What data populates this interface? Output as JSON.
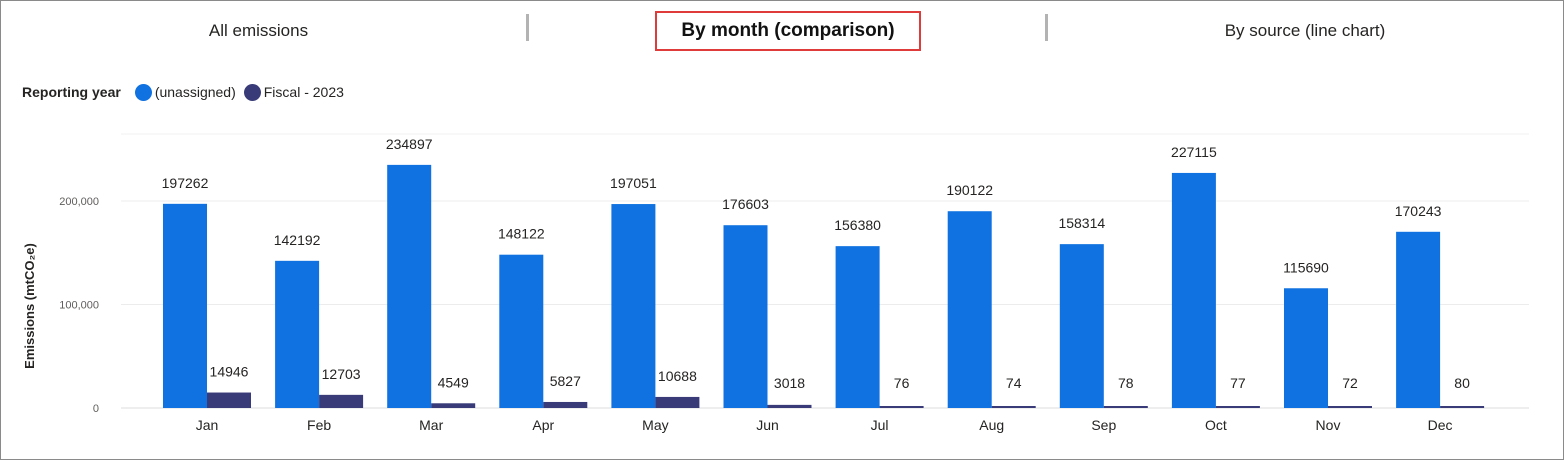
{
  "tabs": [
    {
      "label": "All emissions"
    },
    {
      "label": "By month (comparison)"
    },
    {
      "label": "By source (line chart)"
    }
  ],
  "legend": {
    "title": "Reporting year",
    "items": [
      {
        "label": "(unassigned)",
        "color": "#0f72e0"
      },
      {
        "label": "Fiscal - 2023",
        "color": "#393b79"
      }
    ]
  },
  "chart_data": {
    "type": "bar",
    "ylabel": "Emissions (mtCO₂e)",
    "ylim": [
      0,
      240000
    ],
    "yticks": [
      0,
      100000,
      200000
    ],
    "ytick_labels": [
      "0",
      "100,000",
      "200,000"
    ],
    "grid": true,
    "legend_placement": "top-left",
    "categories": [
      "Jan",
      "Feb",
      "Mar",
      "Apr",
      "May",
      "Jun",
      "Jul",
      "Aug",
      "Sep",
      "Oct",
      "Nov",
      "Dec"
    ],
    "series": [
      {
        "name": "(unassigned)",
        "color": "#0f72e0",
        "values": [
          197262,
          142192,
          234897,
          148122,
          197051,
          176603,
          156380,
          190122,
          158314,
          227115,
          115690,
          170243
        ]
      },
      {
        "name": "Fiscal - 2023",
        "color": "#393b79",
        "values": [
          14946,
          12703,
          4549,
          5827,
          10688,
          3018,
          76,
          74,
          78,
          77,
          72,
          80
        ]
      }
    ]
  }
}
